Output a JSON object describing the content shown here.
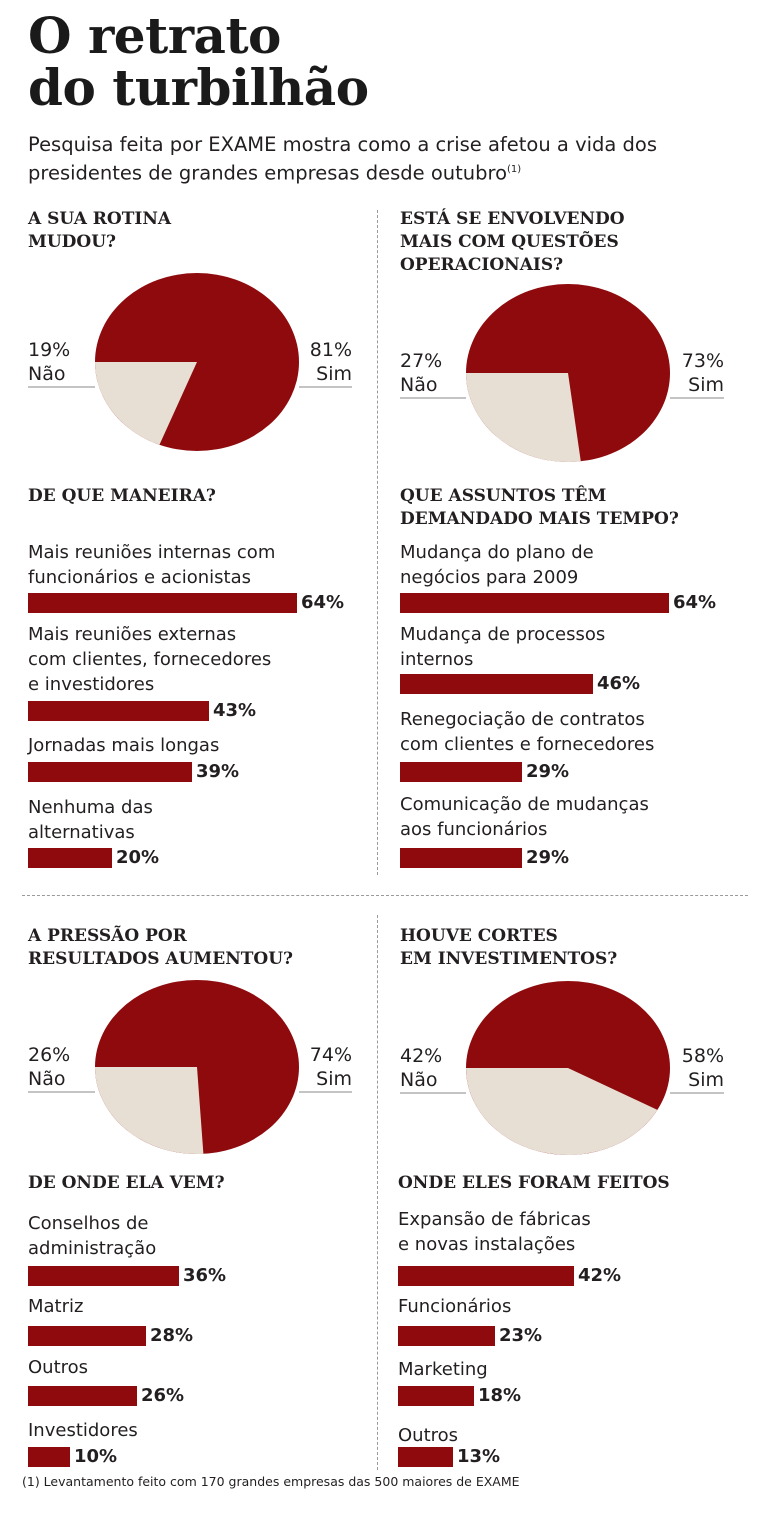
{
  "title_line1": "O retrato",
  "title_line2": "do turbilhão",
  "subtitle": "Pesquisa feita por EXAME mostra como a crise afetou a vida dos presidentes de grandes empresas desde outubro",
  "subtitle_note": "(1)",
  "footnote": "(1) Levantamento feito com 170 grandes empresas das 500 maiores de EXAME",
  "colors": {
    "yes": "#8e0a0d",
    "no": "#e8dfd4",
    "bar": "#8e0a0d"
  },
  "chart_data": [
    {
      "type": "pie",
      "title": "A SUA ROTINA MUDOU?",
      "slices": [
        {
          "label": "Sim",
          "value": 81,
          "text": "81%"
        },
        {
          "label": "Não",
          "value": 19,
          "text": "19%"
        }
      ]
    },
    {
      "type": "pie",
      "title": "ESTÁ SE ENVOLVENDO MAIS COM QUESTÕES OPERACIONAIS?",
      "slices": [
        {
          "label": "Sim",
          "value": 73,
          "text": "73%"
        },
        {
          "label": "Não",
          "value": 27,
          "text": "27%"
        }
      ]
    },
    {
      "type": "bar",
      "title": "DE QUE MANEIRA?",
      "categories": [
        "Mais reuniões internas com funcionários e acionistas",
        "Mais reuniões externas com clientes, fornecedores e investidores",
        "Jornadas mais longas",
        "Nenhuma das alternativas"
      ],
      "values": [
        64,
        43,
        39,
        20
      ],
      "labels": [
        "64%",
        "43%",
        "39%",
        "20%"
      ]
    },
    {
      "type": "bar",
      "title": "QUE ASSUNTOS TÊM DEMANDADO MAIS TEMPO?",
      "categories": [
        "Mudança do plano de negócios para 2009",
        "Mudança de processos internos",
        "Renegociação de contratos com clientes e fornecedores",
        "Comunicação de mudanças aos funcionários"
      ],
      "values": [
        64,
        46,
        29,
        29
      ],
      "labels": [
        "64%",
        "46%",
        "29%",
        "29%"
      ]
    },
    {
      "type": "pie",
      "title": "A PRESSÃO POR RESULTADOS AUMENTOU?",
      "slices": [
        {
          "label": "Sim",
          "value": 74,
          "text": "74%"
        },
        {
          "label": "Não",
          "value": 26,
          "text": "26%"
        }
      ]
    },
    {
      "type": "pie",
      "title": "HOUVE CORTES EM INVESTIMENTOS?",
      "slices": [
        {
          "label": "Sim",
          "value": 58,
          "text": "58%"
        },
        {
          "label": "Não",
          "value": 42,
          "text": "42%"
        }
      ]
    },
    {
      "type": "bar",
      "title": "DE ONDE ELA VEM?",
      "categories": [
        "Conselhos de administração",
        "Matriz",
        "Outros",
        "Investidores"
      ],
      "values": [
        36,
        28,
        26,
        10
      ],
      "labels": [
        "36%",
        "28%",
        "26%",
        "10%"
      ]
    },
    {
      "type": "bar",
      "title": "ONDE ELES FORAM FEITOS",
      "categories": [
        "Expansão de fábricas e novas instalações",
        "Funcionários",
        "Marketing",
        "Outros"
      ],
      "values": [
        42,
        23,
        18,
        13
      ],
      "labels": [
        "42%",
        "23%",
        "18%",
        "13%"
      ]
    }
  ],
  "item_text": {
    "b1": [
      "Mais reuniões internas com\nfuncionários e acionistas",
      "Mais reuniões externas\ncom clientes, fornecedores\ne investidores",
      "Jornadas mais longas",
      "Nenhuma das\nalternativas"
    ],
    "b2": [
      "Mudança do plano de\nnegócios para 2009",
      "Mudança de processos\ninternos",
      "Renegociação de contratos\ncom clientes e fornecedores",
      "Comunicação de mudanças\naos funcionários"
    ],
    "b3": [
      "Conselhos de\nadministração",
      "Matriz",
      "Outros",
      "Investidores"
    ],
    "b4": [
      "Expansão de fábricas\ne novas instalações",
      "Funcionários",
      "Marketing",
      "Outros"
    ]
  },
  "q_text": {
    "p1": "A SUA ROTINA\nMUDOU?",
    "p2": "ESTÁ SE ENVOLVENDO\nMAIS COM QUESTÕES\nOPERACIONAIS?",
    "b1": "DE QUE MANEIRA?",
    "b2": "QUE ASSUNTOS TÊM\nDEMANDADO MAIS TEMPO?",
    "p3": "A PRESSÃO POR\nRESULTADOS AUMENTOU?",
    "p4": "HOUVE CORTES\nEM INVESTIMENTOS?",
    "b3": "DE ONDE ELA VEM?",
    "b4": "ONDE ELES FORAM FEITOS"
  }
}
